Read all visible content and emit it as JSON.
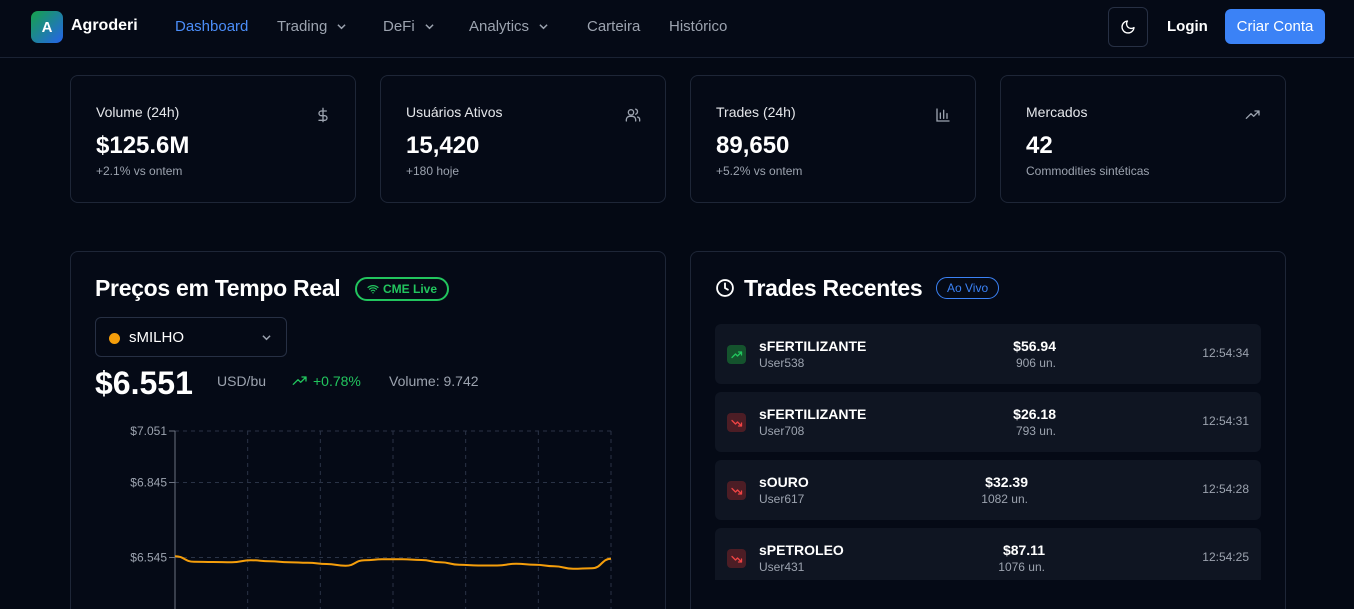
{
  "nav": {
    "brand_letter": "A",
    "brand": "Agroderi",
    "items": [
      {
        "label": "Dashboard",
        "active": true,
        "dropdown": false
      },
      {
        "label": "Trading",
        "dropdown": true
      },
      {
        "label": "DeFi",
        "dropdown": true
      },
      {
        "label": "Analytics",
        "dropdown": true
      },
      {
        "label": "Carteira",
        "dropdown": false
      },
      {
        "label": "Histórico",
        "dropdown": false
      }
    ],
    "theme_icon": "moon-icon",
    "login": "Login",
    "signup": "Criar Conta"
  },
  "stats": [
    {
      "label": "Volume (24h)",
      "value": "$125.6M",
      "sub": "+2.1% vs ontem",
      "icon": "dollar-icon"
    },
    {
      "label": "Usuários Ativos",
      "value": "15,420",
      "sub": "+180 hoje",
      "icon": "users-icon"
    },
    {
      "label": "Trades (24h)",
      "value": "89,650",
      "sub": "+5.2% vs ontem",
      "icon": "bar-chart-icon"
    },
    {
      "label": "Mercados",
      "value": "42",
      "sub": "Commodities sintéticas",
      "icon": "trending-up-icon"
    }
  ],
  "prices": {
    "title": "Preços em Tempo Real",
    "badge": "CME Live",
    "selected_asset": "sMILHO",
    "price": "$6.551",
    "unit": "USD/bu",
    "change": "+0.78%",
    "volume": "Volume: 9.742",
    "colors": {
      "line": "#f59e0b",
      "up": "#22c55e"
    }
  },
  "chart_data": {
    "type": "line",
    "y_ticks": [
      "$7.051",
      "$6.845",
      "$6.545"
    ],
    "ylim": [
      6.4,
      7.051
    ],
    "grid": true,
    "series": [
      {
        "values": [
          6.55,
          6.528,
          6.527,
          6.526,
          6.534,
          6.53,
          6.526,
          6.524,
          6.519,
          6.512,
          6.534,
          6.538,
          6.538,
          6.535,
          6.526,
          6.516,
          6.513,
          6.513,
          6.52,
          6.516,
          6.51,
          6.5,
          6.502,
          6.54
        ]
      }
    ]
  },
  "trades": {
    "title": "Trades Recentes",
    "badge": "Ao Vivo",
    "rows": [
      {
        "symbol": "sFERTILIZANTE",
        "user": "User538",
        "price": "$56.94",
        "qty": "906 un.",
        "time": "12:54:34",
        "direction": "up"
      },
      {
        "symbol": "sFERTILIZANTE",
        "user": "User708",
        "price": "$26.18",
        "qty": "793 un.",
        "time": "12:54:31",
        "direction": "down"
      },
      {
        "symbol": "sOURO",
        "user": "User617",
        "price": "$32.39",
        "qty": "1082 un.",
        "time": "12:54:28",
        "direction": "down"
      },
      {
        "symbol": "sPETROLEO",
        "user": "User431",
        "price": "$87.11",
        "qty": "1076 un.",
        "time": "12:54:25",
        "direction": "down"
      }
    ]
  }
}
